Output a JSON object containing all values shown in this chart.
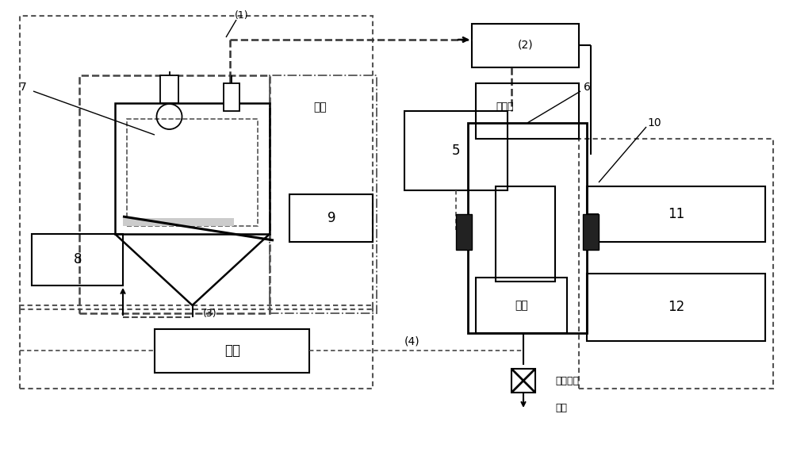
{
  "bg_color": "#ffffff",
  "fig_width": 10.0,
  "fig_height": 5.75,
  "labels": {
    "1": "(1)",
    "2": "(2)",
    "3": "(3)",
    "4": "(4)",
    "5": "5",
    "6": "6",
    "7": "7",
    "8": "8",
    "9": "9",
    "10": "10",
    "11": "11",
    "12": "12",
    "chouqi": "抽气",
    "chugakou": "出气口",
    "nitrogen": "氮气",
    "control": "控制",
    "valve_label": "程控开关",
    "discharge": "排出"
  }
}
